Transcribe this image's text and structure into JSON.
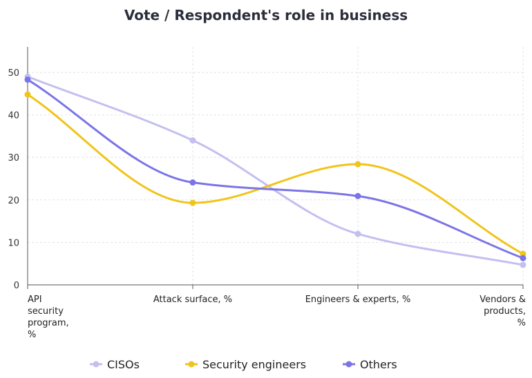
{
  "chart_data": {
    "type": "line",
    "title": "Vote / Respondent's role in business",
    "categories": [
      [
        "API",
        "security",
        "program,",
        "%"
      ],
      [
        "Attack surface, %"
      ],
      [
        "Engineers & experts, %"
      ],
      [
        "Vendors &",
        "products,",
        "%"
      ]
    ],
    "ylim": [
      0,
      56
    ],
    "yticks": [
      0,
      10,
      20,
      30,
      40,
      50
    ],
    "grid": true,
    "legend_position": "bottom",
    "series": [
      {
        "name": "CISOs",
        "color": "#c3bff0",
        "values": [
          49,
          34,
          12,
          4.7
        ]
      },
      {
        "name": "Security engineers",
        "color": "#f0c419",
        "values": [
          44.8,
          19.3,
          28.4,
          7.3
        ]
      },
      {
        "name": "Others",
        "color": "#7b74e6",
        "values": [
          48.3,
          24.1,
          20.9,
          6.3
        ]
      }
    ]
  }
}
